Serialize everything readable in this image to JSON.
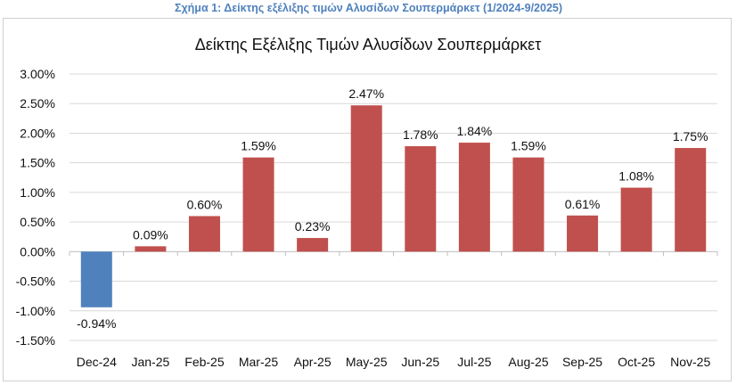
{
  "caption": "Σχήμα 1: Δείκτης εξέλιξης τιμών Αλυσίδων Σουπερμάρκετ (1/2024-9/2025)",
  "chart_data": {
    "type": "bar",
    "title": "Δείκτης Εξέλιξης Τιμών Αλυσίδων Σουπερμάρκετ",
    "xlabel": "",
    "ylabel": "",
    "categories": [
      "Dec-24",
      "Jan-25",
      "Feb-25",
      "Mar-25",
      "Apr-25",
      "May-25",
      "Jun-25",
      "Jul-25",
      "Aug-25",
      "Sep-25",
      "Oct-25",
      "Nov-25"
    ],
    "values": [
      -0.94,
      0.09,
      0.6,
      1.59,
      0.23,
      2.47,
      1.78,
      1.84,
      1.59,
      0.61,
      1.08,
      1.75
    ],
    "data_labels": [
      "-0.94%",
      "0.09%",
      "0.60%",
      "1.59%",
      "0.23%",
      "2.47%",
      "1.78%",
      "1.84%",
      "1.59%",
      "0.61%",
      "1.08%",
      "1.75%"
    ],
    "ylim": [
      -1.5,
      3.0
    ],
    "yticks": [
      3.0,
      2.5,
      2.0,
      1.5,
      1.0,
      0.5,
      0.0,
      -0.5,
      -1.0,
      -1.5
    ],
    "ytick_labels": [
      "3.00%",
      "2.50%",
      "2.00%",
      "1.50%",
      "1.00%",
      "0.50%",
      "0.00%",
      "-0.50%",
      "-1.00%",
      "-1.50%"
    ],
    "grid": true,
    "legend": "none",
    "colors": {
      "positive": "#c0504d",
      "negative": "#4f81bd"
    }
  }
}
